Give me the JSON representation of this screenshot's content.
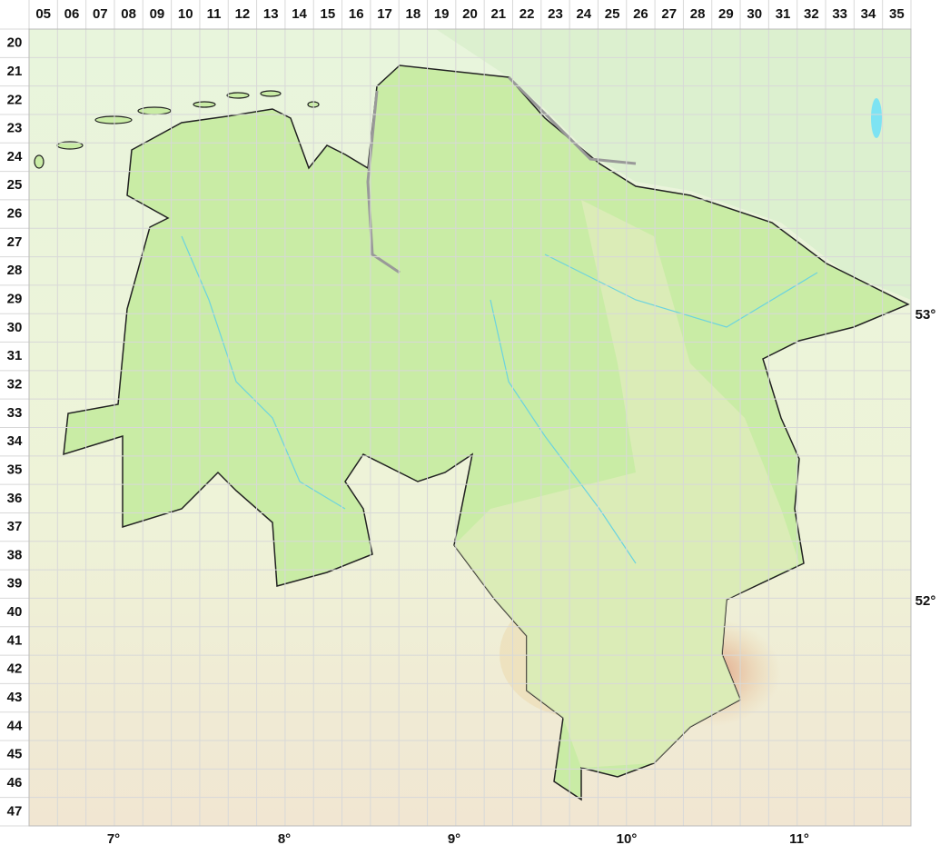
{
  "columns": [
    "05",
    "06",
    "07",
    "08",
    "09",
    "10",
    "11",
    "12",
    "13",
    "14",
    "15",
    "16",
    "17",
    "18",
    "19",
    "20",
    "21",
    "22",
    "23",
    "24",
    "25",
    "26",
    "27",
    "28",
    "29",
    "30",
    "31",
    "32",
    "33",
    "34",
    "35"
  ],
  "rows": [
    "20",
    "21",
    "22",
    "23",
    "24",
    "25",
    "26",
    "27",
    "28",
    "29",
    "30",
    "31",
    "32",
    "33",
    "34",
    "35",
    "36",
    "37",
    "38",
    "39",
    "40",
    "41",
    "42",
    "43",
    "44",
    "45",
    "46",
    "47"
  ],
  "longitudes": [
    "7°",
    "8°",
    "9°",
    "10°",
    "11°"
  ],
  "latitudes": [
    "53°",
    "52°"
  ]
}
